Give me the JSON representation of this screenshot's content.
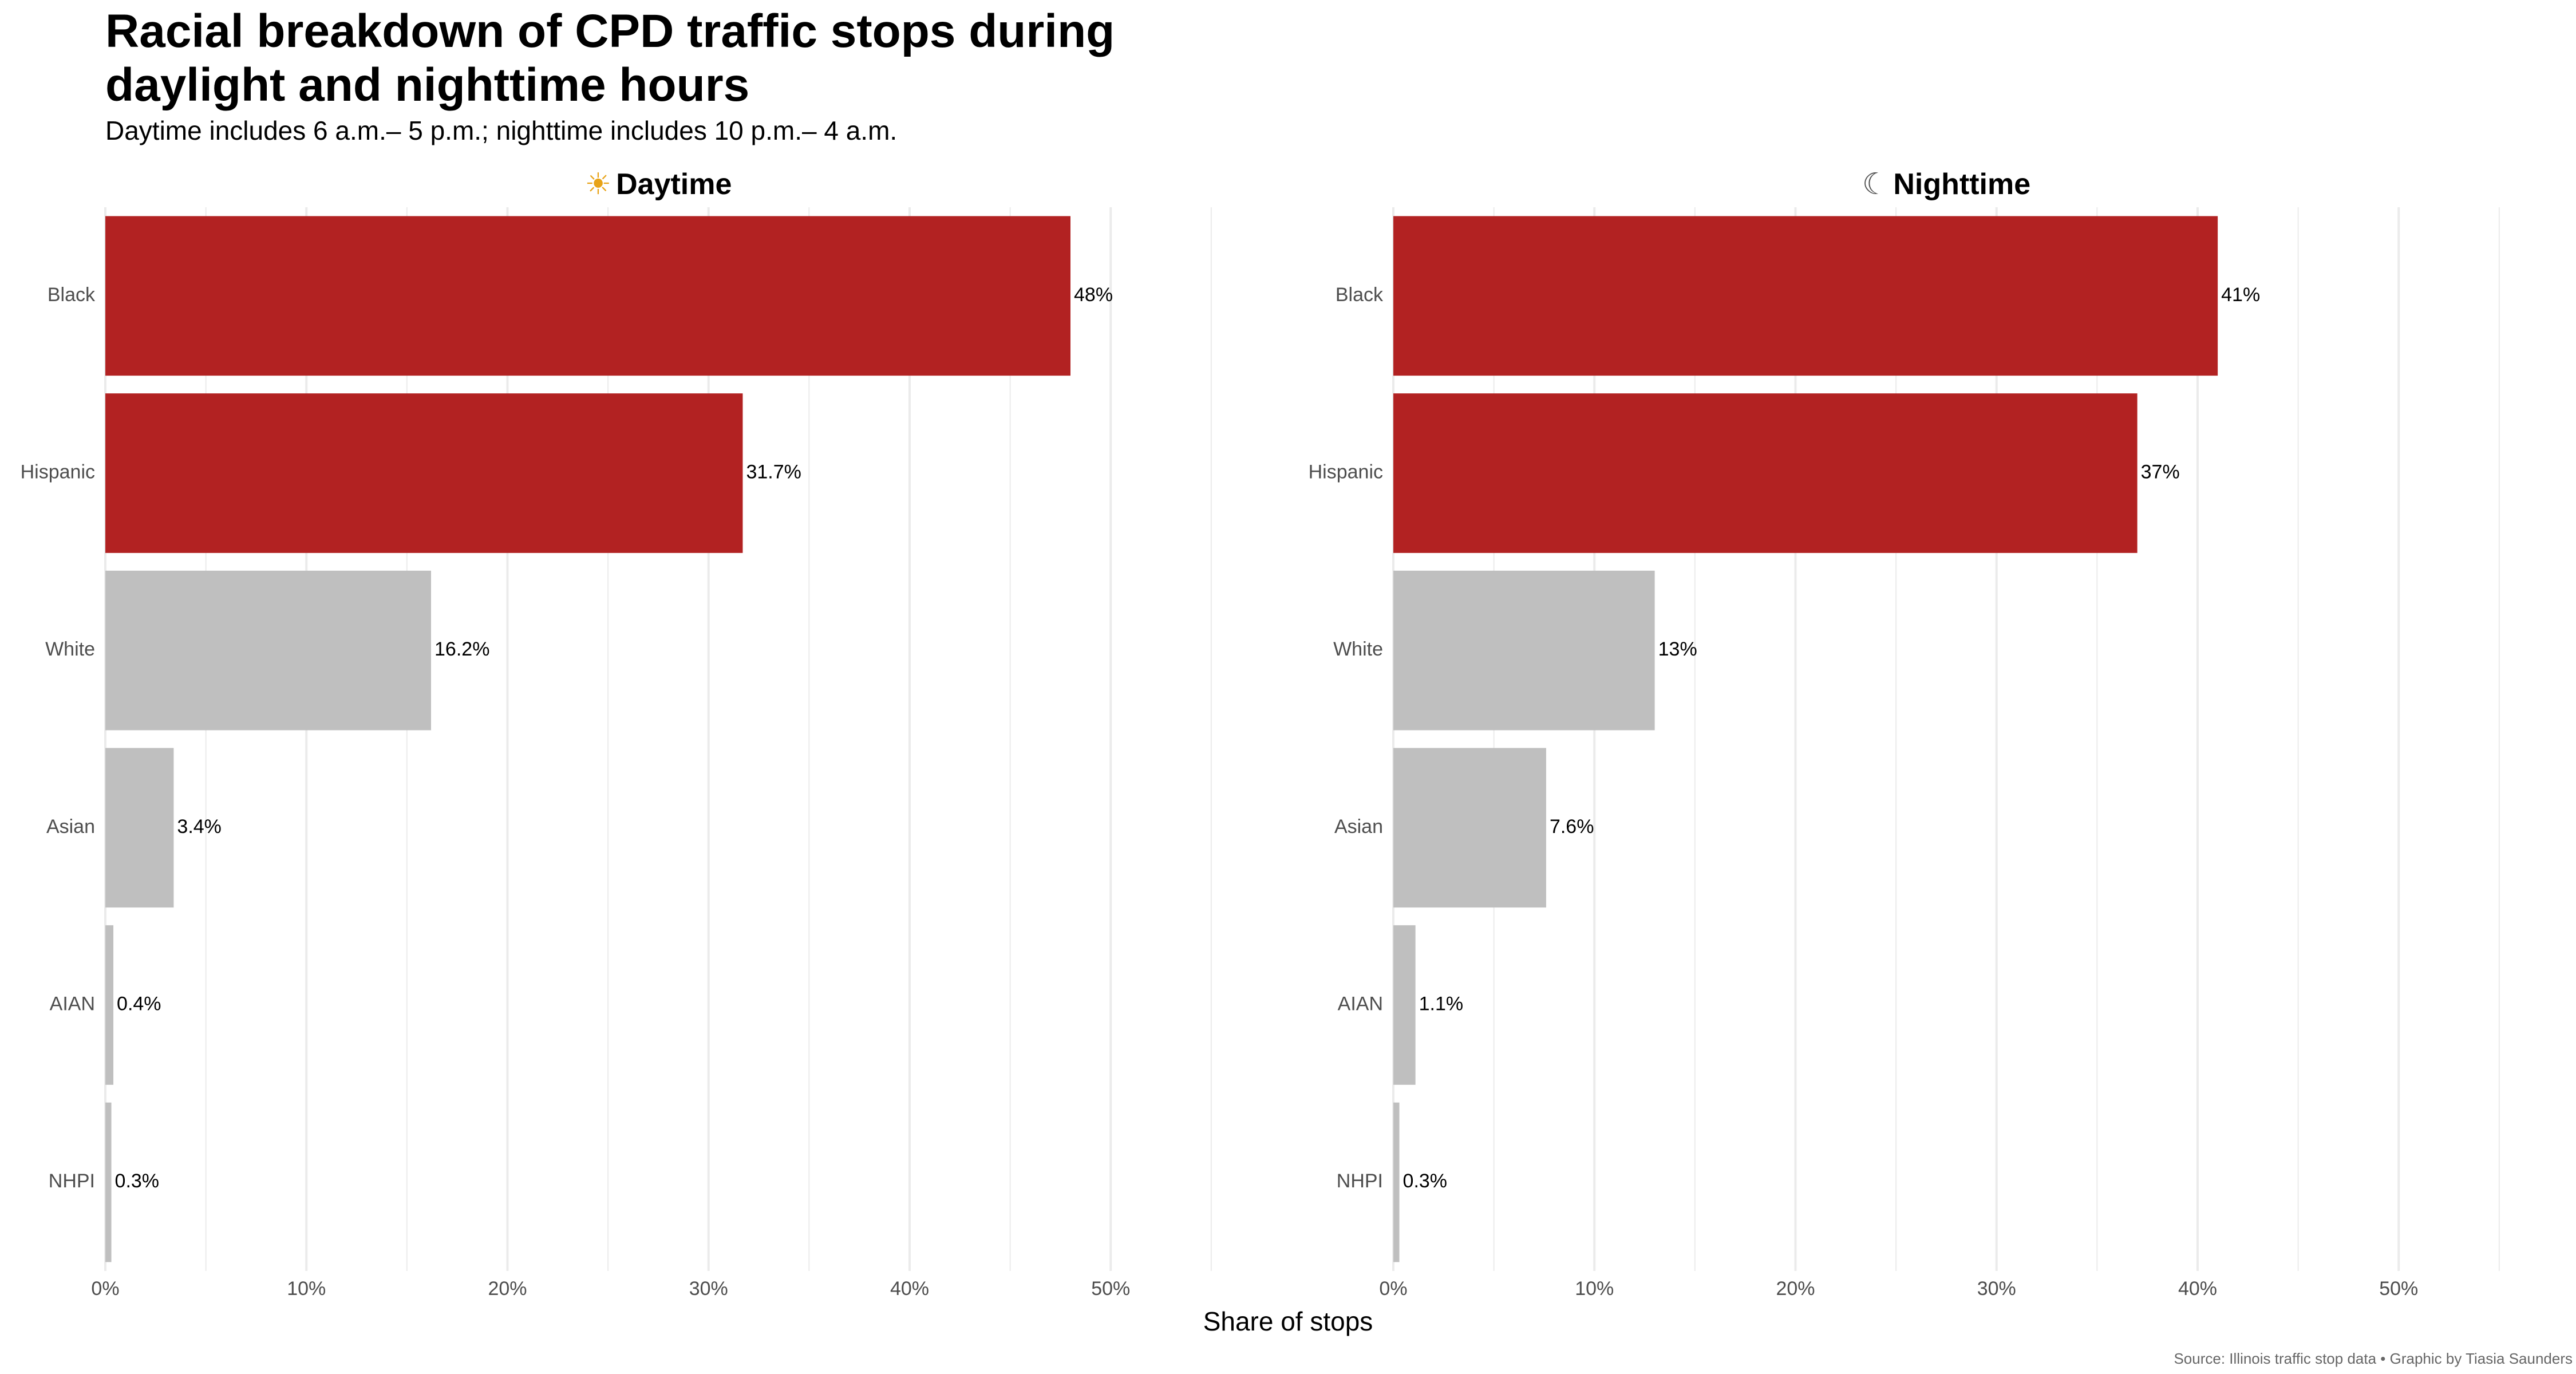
{
  "title": "Racial breakdown of CPD traffic stops during\n daylight and nighttime hours",
  "subtitle": "Daytime includes 6 a.m.– 5 p.m.; nighttime includes 10 p.m.– 4 a.m.",
  "caption": "Source: Illinois traffic stop data • Graphic by Tiasia Saunders",
  "colors": {
    "highlight": "#b22222",
    "other": "#bfbfbf",
    "grid": "#ebebeb",
    "axis_text": "#4d4d4d"
  },
  "chart_data": {
    "type": "bar",
    "orientation": "horizontal",
    "categories": [
      "Black",
      "Hispanic",
      "White",
      "Asian",
      "AIAN",
      "NHPI"
    ],
    "highlighted_categories": [
      "Black",
      "Hispanic"
    ],
    "xlabel": "Share of stops",
    "ylabel": "",
    "xlim": [
      0,
      55
    ],
    "x_ticks": [
      0,
      10,
      20,
      30,
      40,
      50
    ],
    "x_tick_labels": [
      "0%",
      "10%",
      "20%",
      "30%",
      "40%",
      "50%"
    ],
    "grid": true,
    "panels": [
      {
        "name": "Daytime",
        "icon": "sun-icon",
        "symbol": "☀",
        "values": [
          48,
          31.7,
          16.2,
          3.4,
          0.4,
          0.3
        ],
        "labels": [
          "48%",
          "31.7%",
          "16.2%",
          "3.4%",
          "0.4%",
          "0.3%"
        ]
      },
      {
        "name": "Nighttime",
        "icon": "moon-icon",
        "symbol": "☾",
        "values": [
          41,
          37,
          13,
          7.6,
          1.1,
          0.3
        ],
        "labels": [
          "41%",
          "37%",
          "13%",
          "7.6%",
          "1.1%",
          "0.3%"
        ]
      }
    ]
  }
}
